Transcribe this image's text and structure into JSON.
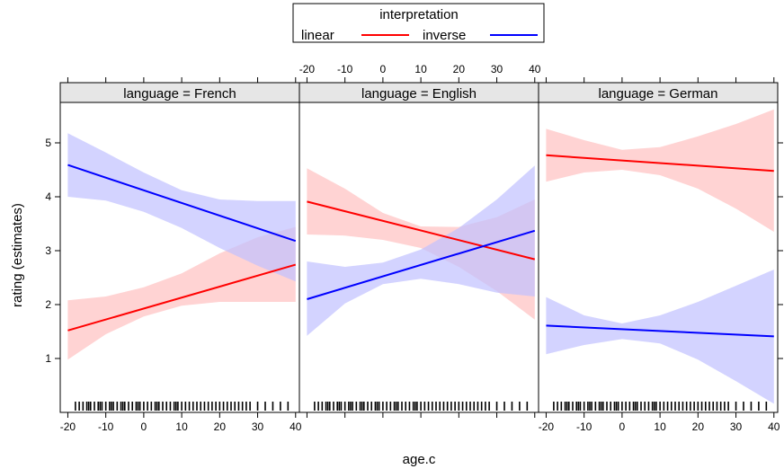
{
  "chart_data": {
    "type": "line",
    "xlabel": "age.c",
    "ylabel": "rating (estimates)",
    "x_ticks": [
      -20,
      -10,
      0,
      10,
      20,
      30,
      40
    ],
    "y_ticks": [
      1,
      2,
      3,
      4,
      5
    ],
    "xlim": [
      -22,
      41
    ],
    "ylim": [
      0.0,
      5.75
    ],
    "legend": {
      "title": "interpretation",
      "position": "top",
      "entries": [
        {
          "label": "linear",
          "color": "#ff0000"
        },
        {
          "label": "inverse",
          "color": "#0000ff"
        }
      ]
    },
    "panels": [
      {
        "strip": "language = French",
        "series": [
          {
            "name": "linear",
            "color": "#ff0000",
            "band_color": "#ffc0c0",
            "x": [
              -20,
              40
            ],
            "y": [
              1.52,
              2.74
            ],
            "ci_x": [
              -20,
              -10,
              0,
              10,
              20,
              30,
              40
            ],
            "ci_lower": [
              0.98,
              1.45,
              1.78,
              1.98,
              2.05,
              2.05,
              2.05
            ],
            "ci_upper": [
              2.08,
              2.15,
              2.32,
              2.58,
              2.95,
              3.25,
              3.44
            ]
          },
          {
            "name": "inverse",
            "color": "#0000ff",
            "band_color": "#c0c0ff",
            "x": [
              -20,
              40
            ],
            "y": [
              4.59,
              3.18
            ],
            "ci_x": [
              -20,
              -10,
              0,
              10,
              20,
              30,
              40
            ],
            "ci_lower": [
              4.0,
              3.93,
              3.72,
              3.42,
              3.05,
              2.72,
              2.43
            ],
            "ci_upper": [
              5.18,
              4.82,
              4.45,
              4.12,
              3.95,
              3.92,
              3.92
            ]
          }
        ]
      },
      {
        "strip": "language = English",
        "series": [
          {
            "name": "linear",
            "color": "#ff0000",
            "band_color": "#ffc0c0",
            "x": [
              -20,
              40
            ],
            "y": [
              3.91,
              2.84
            ],
            "ci_x": [
              -20,
              -10,
              0,
              10,
              20,
              30,
              40
            ],
            "ci_lower": [
              3.3,
              3.28,
              3.2,
              3.05,
              2.7,
              2.25,
              1.72
            ],
            "ci_upper": [
              4.53,
              4.15,
              3.7,
              3.45,
              3.44,
              3.62,
              3.95
            ]
          },
          {
            "name": "inverse",
            "color": "#0000ff",
            "band_color": "#c0c0ff",
            "x": [
              -20,
              40
            ],
            "y": [
              2.1,
              3.37
            ],
            "ci_x": [
              -20,
              -10,
              0,
              10,
              20,
              30,
              40
            ],
            "ci_lower": [
              1.42,
              2.02,
              2.38,
              2.48,
              2.38,
              2.22,
              2.15
            ],
            "ci_upper": [
              2.8,
              2.7,
              2.78,
              3.02,
              3.42,
              3.95,
              4.58
            ]
          }
        ]
      },
      {
        "strip": "language = German",
        "series": [
          {
            "name": "linear",
            "color": "#ff0000",
            "band_color": "#ffc0c0",
            "x": [
              -20,
              40
            ],
            "y": [
              4.77,
              4.48
            ],
            "ci_x": [
              -20,
              -10,
              0,
              10,
              20,
              30,
              40
            ],
            "ci_lower": [
              4.28,
              4.45,
              4.5,
              4.4,
              4.15,
              3.78,
              3.35
            ],
            "ci_upper": [
              5.26,
              5.05,
              4.87,
              4.92,
              5.12,
              5.35,
              5.62
            ]
          },
          {
            "name": "inverse",
            "color": "#0000ff",
            "band_color": "#c0c0ff",
            "x": [
              -20,
              40
            ],
            "y": [
              1.61,
              1.41
            ],
            "ci_x": [
              -20,
              -10,
              0,
              10,
              20,
              30,
              40
            ],
            "ci_lower": [
              1.08,
              1.25,
              1.36,
              1.28,
              0.98,
              0.58,
              0.16
            ],
            "ci_upper": [
              2.14,
              1.8,
              1.65,
              1.8,
              2.05,
              2.35,
              2.65
            ]
          }
        ]
      }
    ],
    "rug_x": [
      -18,
      -17,
      -16,
      -15,
      -14.5,
      -14,
      -13,
      -12,
      -11.5,
      -11,
      -10,
      -9,
      -8.5,
      -8,
      -7,
      -6,
      -5.5,
      -5,
      -4,
      -3,
      -2,
      -1.5,
      -1,
      0,
      1,
      2,
      3,
      3.5,
      4,
      5,
      6,
      7,
      8,
      8.5,
      9,
      10,
      11,
      12,
      13,
      14,
      15,
      16,
      17,
      18,
      19,
      20,
      21,
      22,
      23,
      24,
      25,
      26,
      27,
      28,
      30,
      32,
      34,
      36,
      38
    ]
  }
}
